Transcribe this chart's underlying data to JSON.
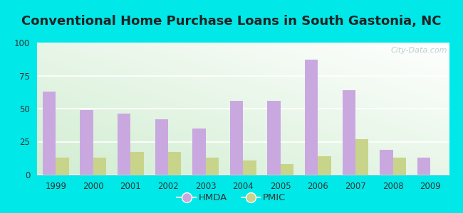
{
  "title": "Conventional Home Purchase Loans in South Gastonia, NC",
  "years": [
    1999,
    2000,
    2001,
    2002,
    2003,
    2004,
    2005,
    2006,
    2007,
    2008,
    2009
  ],
  "hmda": [
    63,
    49,
    46,
    42,
    35,
    56,
    56,
    87,
    64,
    19,
    13
  ],
  "pmic": [
    13,
    13,
    17,
    17,
    13,
    11,
    8,
    14,
    27,
    13,
    0
  ],
  "hmda_color": "#c9a8e0",
  "pmic_color": "#c8d48a",
  "background_color": "#00e8e8",
  "ylim": [
    0,
    100
  ],
  "yticks": [
    0,
    25,
    50,
    75,
    100
  ],
  "title_fontsize": 13,
  "bar_width": 0.35,
  "legend_labels": [
    "HMDA",
    "PMIC"
  ],
  "watermark": "City-Data.com"
}
